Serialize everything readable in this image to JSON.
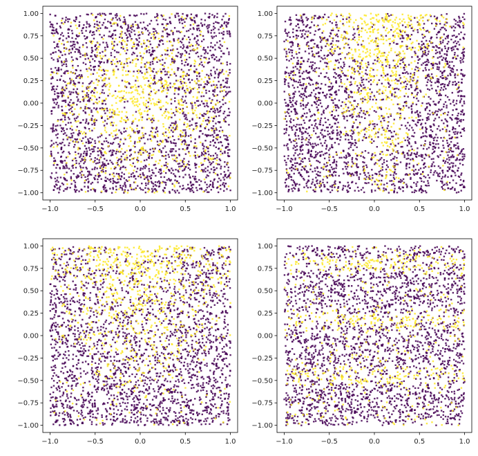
{
  "chart_data": [
    {
      "type": "scatter",
      "panel": "top-left",
      "xlim": [
        -1.08,
        1.08
      ],
      "ylim": [
        -1.08,
        1.08
      ],
      "xticks": [
        "-1.0",
        "-0.5",
        "0.0",
        "0.5",
        "1.0"
      ],
      "yticks": [
        "1.00",
        "0.75",
        "0.50",
        "0.25",
        "0.00",
        "-0.25",
        "-0.50",
        "-0.75",
        "-1.00"
      ],
      "x_range": [
        -1,
        1
      ],
      "y_range": [
        -1,
        1
      ],
      "pattern": "yellow concentrated in central blob around (0,0)",
      "grid": false
    },
    {
      "type": "scatter",
      "panel": "top-right",
      "xlim": [
        -1.08,
        1.08
      ],
      "ylim": [
        -1.08,
        1.08
      ],
      "xticks": [
        "-1.0",
        "-0.5",
        "0.0",
        "0.5",
        "1.0"
      ],
      "yticks": [
        "1.00",
        "0.75",
        "0.50",
        "0.25",
        "0.00",
        "-0.25",
        "-0.50",
        "-0.75",
        "-1.00"
      ],
      "x_range": [
        -1,
        1
      ],
      "y_range": [
        -1,
        1
      ],
      "pattern": "yellow funnel widest at top-center, narrowing downward",
      "grid": false
    },
    {
      "type": "scatter",
      "panel": "bottom-left",
      "xlim": [
        -1.08,
        1.08
      ],
      "ylim": [
        -1.08,
        1.08
      ],
      "xticks": [
        "-1.0",
        "-0.5",
        "0.0",
        "0.5",
        "1.0"
      ],
      "yticks": [
        "1.00",
        "0.75",
        "0.50",
        "0.25",
        "0.00",
        "-0.25",
        "-0.50",
        "-0.75",
        "-1.00"
      ],
      "x_range": [
        -1,
        1
      ],
      "y_range": [
        -1,
        1
      ],
      "pattern": "yellow in upper half, fading downward",
      "grid": false
    },
    {
      "type": "scatter",
      "panel": "bottom-right",
      "xlim": [
        -1.08,
        1.08
      ],
      "ylim": [
        -1.08,
        1.08
      ],
      "xticks": [
        "-1.0",
        "-0.5",
        "0.0",
        "0.5",
        "1.0"
      ],
      "yticks": [
        "1.00",
        "0.75",
        "0.50",
        "0.25",
        "0.00",
        "-0.25",
        "-0.50",
        "-0.75",
        "-1.00"
      ],
      "x_range": [
        -1,
        1
      ],
      "y_range": [
        -1,
        1
      ],
      "pattern": "horizontal yellow bands near y=0.8, 0.15, -0.45",
      "grid": false
    }
  ],
  "colors": {
    "class0": "#440154",
    "class1": "#fde725",
    "axes": "#000000"
  }
}
